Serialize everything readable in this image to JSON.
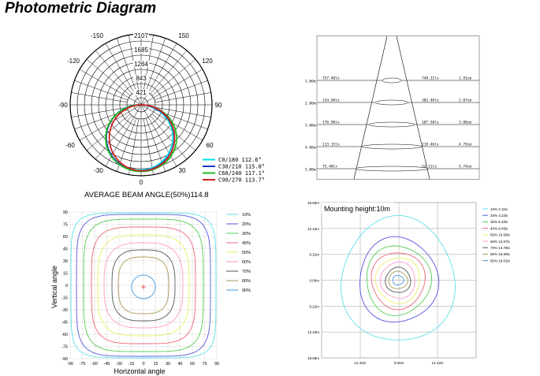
{
  "title": "Photometric Diagram",
  "polar": {
    "radial_labels": [
      "2107",
      "1685",
      "1264",
      "843",
      "421"
    ],
    "angle_labels": [
      "0",
      "30",
      "60",
      "90",
      "120",
      "150",
      "-30",
      "-60",
      "-90",
      "-120",
      "-150"
    ],
    "legend": [
      {
        "label": "C0/180 112.6°",
        "color": "#00e0e8"
      },
      {
        "label": "C30/210 115.8°",
        "color": "#2233cc"
      },
      {
        "label": "C60/240 117.1°",
        "color": "#22bb22"
      },
      {
        "label": "C90/270 113.7°",
        "color": "#cc2222"
      }
    ],
    "beam_caption": "AVERAGE BEAM ANGLE(50%)114.8"
  },
  "cone": {
    "rows": [
      {
        "height": "1.00m",
        "lux": "757.40lx",
        "avg": "749.31lx",
        "dia": "1.91cm"
      },
      {
        "height": "2.00m",
        "lux": "314.60lx",
        "avg": "302.46lx",
        "dia": "2.07cm"
      },
      {
        "height": "3.00m",
        "lux": "176.96lx",
        "avg": "187.50lx",
        "dia": "3.80cm"
      },
      {
        "height": "4.00m",
        "lux": "113.15lx",
        "avg": "119.46lx",
        "dia": "4.79cm"
      },
      {
        "height": "5.00m",
        "lux": "75.40lx",
        "avg": "53.11lx",
        "dia": "5.74cm"
      }
    ]
  },
  "isolux": {
    "y_ticks": [
      "90",
      "75",
      "60",
      "45",
      "30",
      "15",
      "0",
      "-15",
      "-30",
      "-45",
      "-60",
      "-75",
      "-90"
    ],
    "x_ticks": [
      "-90",
      "-75",
      "-60",
      "-45",
      "-30",
      "-15",
      "0",
      "15",
      "30",
      "45",
      "60",
      "75",
      "90"
    ],
    "xlabel": "Horizontal angle",
    "ylabel": "Vertical angle",
    "legend": [
      {
        "label": "10%",
        "color": "#5fe0e8"
      },
      {
        "label": "20%",
        "color": "#5555dd"
      },
      {
        "label": "30%",
        "color": "#55cc55"
      },
      {
        "label": "40%",
        "color": "#ee6677"
      },
      {
        "label": "50%",
        "color": "#eeee66"
      },
      {
        "label": "60%",
        "color": "#ff99cc"
      },
      {
        "label": "70%",
        "color": "#555555"
      },
      {
        "label": "80%",
        "color": "#aa9955"
      },
      {
        "label": "90%",
        "color": "#4499dd"
      }
    ]
  },
  "illuminance": {
    "caption": "Mounting height:10m",
    "y_ticks": [
      "18.65m",
      "12.43m",
      "6.22m",
      "0.00m",
      "6.22m",
      "12.43m",
      "18.65m"
    ],
    "x_ticks": [
      "12.43m",
      "0.00m",
      "12.43m"
    ],
    "legend": [
      {
        "label": "10% 2.11lx",
        "color": "#5fe0e8"
      },
      {
        "label": "20% 4.22lx",
        "color": "#5555dd"
      },
      {
        "label": "30% 6.33lx",
        "color": "#55cc55"
      },
      {
        "label": "40% 8.45lx",
        "color": "#ee6677"
      },
      {
        "label": "50% 10.56lx",
        "color": "#eeee66"
      },
      {
        "label": "60% 12.67lx",
        "color": "#ff99cc"
      },
      {
        "label": "70% 14.78lx",
        "color": "#555555"
      },
      {
        "label": "80% 16.90lx",
        "color": "#aa9955"
      },
      {
        "label": "90% 19.01lx",
        "color": "#4499dd"
      }
    ]
  }
}
